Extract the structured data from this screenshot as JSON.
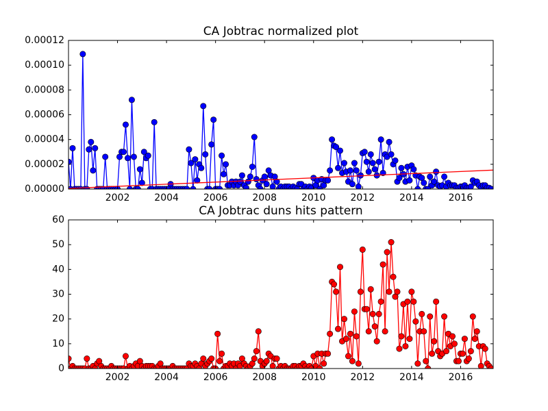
{
  "chart_data": [
    {
      "type": "line",
      "title": "CA Jobtrac normalized plot",
      "x": [
        2000,
        2000.083,
        2000.167,
        2000.25,
        2000.333,
        2000.417,
        2000.5,
        2000.583,
        2000.667,
        2000.75,
        2000.833,
        2000.917,
        2001,
        2001.083,
        2001.167,
        2001.25,
        2001.333,
        2001.417,
        2001.5,
        2001.583,
        2001.667,
        2001.75,
        2001.833,
        2001.917,
        2002,
        2002.083,
        2002.167,
        2002.25,
        2002.333,
        2002.417,
        2002.5,
        2002.583,
        2002.667,
        2002.75,
        2002.833,
        2002.917,
        2003,
        2003.083,
        2003.167,
        2003.25,
        2003.333,
        2003.417,
        2003.5,
        2003.583,
        2003.667,
        2003.75,
        2003.833,
        2003.917,
        2004,
        2004.083,
        2004.167,
        2004.25,
        2004.333,
        2004.417,
        2004.5,
        2004.583,
        2004.667,
        2004.75,
        2004.833,
        2004.917,
        2005,
        2005.083,
        2005.167,
        2005.25,
        2005.333,
        2005.417,
        2005.5,
        2005.583,
        2005.667,
        2005.75,
        2005.833,
        2005.917,
        2006,
        2006.083,
        2006.167,
        2006.25,
        2006.333,
        2006.417,
        2006.5,
        2006.583,
        2006.667,
        2006.75,
        2006.833,
        2006.917,
        2007,
        2007.083,
        2007.167,
        2007.25,
        2007.333,
        2007.417,
        2007.5,
        2007.583,
        2007.667,
        2007.75,
        2007.833,
        2007.917,
        2008,
        2008.083,
        2008.167,
        2008.25,
        2008.333,
        2008.417,
        2008.5,
        2008.583,
        2008.667,
        2008.75,
        2008.833,
        2008.917,
        2009,
        2009.083,
        2009.167,
        2009.25,
        2009.333,
        2009.417,
        2009.5,
        2009.583,
        2009.667,
        2009.75,
        2009.833,
        2009.917,
        2010,
        2010.083,
        2010.167,
        2010.25,
        2010.333,
        2010.417,
        2010.5,
        2010.583,
        2010.667,
        2010.75,
        2010.833,
        2010.917,
        2011,
        2011.083,
        2011.167,
        2011.25,
        2011.333,
        2011.417,
        2011.5,
        2011.583,
        2011.667,
        2011.75,
        2011.833,
        2011.917,
        2012,
        2012.083,
        2012.167,
        2012.25,
        2012.333,
        2012.417,
        2012.5,
        2012.583,
        2012.667,
        2012.75,
        2012.833,
        2012.917,
        2013,
        2013.083,
        2013.167,
        2013.25,
        2013.333,
        2013.417,
        2013.5,
        2013.583,
        2013.667,
        2013.75,
        2013.833,
        2013.917,
        2014,
        2014.083,
        2014.167,
        2014.25,
        2014.333,
        2014.417,
        2014.5,
        2014.583,
        2014.667,
        2014.75,
        2014.833,
        2014.917,
        2015,
        2015.083,
        2015.167,
        2015.25,
        2015.333,
        2015.417,
        2015.5,
        2015.583,
        2015.667,
        2015.75,
        2015.833,
        2015.917,
        2016,
        2016.083,
        2016.167,
        2016.25,
        2016.333,
        2016.417,
        2016.5,
        2016.583,
        2016.667,
        2016.75,
        2016.833,
        2016.917,
        2017,
        2017.083,
        2017.167,
        2017.25
      ],
      "series": [
        {
          "color": "#0000ff",
          "marker": "o",
          "values": [
            2.2e-05,
            0,
            3.3e-05,
            0,
            0,
            0,
            0,
            0.000109,
            0,
            0,
            3.2e-05,
            3.8e-05,
            1.5e-05,
            3.3e-05,
            0,
            0,
            0,
            0,
            2.6e-05,
            0,
            0,
            0,
            0,
            0,
            0,
            2.6e-05,
            3e-05,
            3e-05,
            5.2e-05,
            2.5e-05,
            0,
            7.2e-05,
            2.6e-05,
            0,
            0,
            1.6e-05,
            5e-06,
            3e-05,
            2.5e-05,
            2.7e-05,
            0,
            0,
            5.4e-05,
            0,
            0,
            0,
            0,
            0,
            0,
            0,
            4e-06,
            0,
            0,
            0,
            0,
            0,
            0,
            0,
            0,
            3.2e-05,
            2.1e-05,
            0,
            2.4e-05,
            7e-06,
            2e-05,
            1.7e-05,
            6.7e-05,
            2.8e-05,
            0,
            0,
            3.6e-05,
            5.6e-05,
            0,
            0,
            0,
            2.7e-05,
            1.2e-05,
            2e-05,
            3e-06,
            3e-06,
            6e-06,
            3e-06,
            6e-06,
            3e-06,
            6e-06,
            1.1e-05,
            3e-06,
            1e-06,
            6e-06,
            1e-05,
            1.8e-05,
            4.2e-05,
            8e-06,
            3e-06,
            0,
            7e-06,
            1e-05,
            4e-06,
            1.5e-05,
            1.1e-05,
            2e-06,
            1e-05,
            6e-06,
            0,
            2e-06,
            0,
            2e-06,
            2e-06,
            2e-06,
            0,
            2e-06,
            1e-06,
            0,
            4e-06,
            4e-06,
            0,
            2e-06,
            0,
            2e-06,
            1e-06,
            9e-06,
            3e-06,
            7e-06,
            0,
            8e-06,
            3e-06,
            7e-06,
            7e-06,
            1.5e-05,
            4e-05,
            3.5e-05,
            3.4e-05,
            1.7e-05,
            3.1e-05,
            1.3e-05,
            2.1e-05,
            1.4e-05,
            6e-06,
            1.5e-05,
            4e-06,
            2.1e-05,
            1.5e-05,
            2e-06,
            1.1e-05,
            2.9e-05,
            3e-05,
            2.2e-05,
            1.4e-05,
            2.8e-05,
            2.1e-05,
            1.6e-05,
            1.1e-05,
            2.2e-05,
            4e-05,
            1.3e-05,
            2.8e-05,
            2.6e-05,
            3.8e-05,
            2.8e-05,
            2e-05,
            2.3e-05,
            6e-06,
            9e-06,
            1.7e-05,
            1.2e-05,
            6e-06,
            1.8e-05,
            7e-06,
            1.9e-05,
            1.6e-05,
            1.1e-05,
            0,
            1e-05,
            9e-06,
            5e-06,
            0,
            0,
            1e-05,
            3e-06,
            6e-06,
            1.4e-05,
            3e-06,
            2e-06,
            3e-06,
            1e-05,
            2e-06,
            5e-06,
            3e-06,
            3e-06,
            3e-06,
            1e-06,
            1e-06,
            2e-06,
            2e-06,
            3e-06,
            1e-06,
            1e-06,
            2e-06,
            7e-06,
            5e-06,
            6e-06,
            3e-06,
            1e-06,
            3e-06,
            3e-06,
            1e-06,
            1e-06,
            0
          ]
        },
        {
          "color": "#ff0000",
          "marker": "none",
          "x": [
            2000,
            2017.33
          ],
          "values": [
            5e-07,
            1.53e-05
          ]
        }
      ],
      "xlim": [
        2000,
        2017.33
      ],
      "xticks": [
        2002,
        2004,
        2006,
        2008,
        2010,
        2012,
        2014,
        2016
      ],
      "ylim": [
        0,
        0.00012
      ],
      "yticks": [
        {
          "value": 0,
          "label": "0.00000"
        },
        {
          "value": 2e-05,
          "label": "0.00002"
        },
        {
          "value": 4e-05,
          "label": "0.00004"
        },
        {
          "value": 6e-05,
          "label": "0.00006"
        },
        {
          "value": 8e-05,
          "label": "0.00008"
        },
        {
          "value": 0.0001,
          "label": "0.00010"
        },
        {
          "value": 0.00012,
          "label": "0.00012"
        }
      ]
    },
    {
      "type": "line",
      "title": "CA Jobtrac duns hits pattern",
      "x": [
        2000,
        2000.083,
        2000.167,
        2000.25,
        2000.333,
        2000.417,
        2000.5,
        2000.583,
        2000.667,
        2000.75,
        2000.833,
        2000.917,
        2001,
        2001.083,
        2001.167,
        2001.25,
        2001.333,
        2001.417,
        2001.5,
        2001.583,
        2001.667,
        2001.75,
        2001.833,
        2001.917,
        2002,
        2002.083,
        2002.167,
        2002.25,
        2002.333,
        2002.417,
        2002.5,
        2002.583,
        2002.667,
        2002.75,
        2002.833,
        2002.917,
        2003,
        2003.083,
        2003.167,
        2003.25,
        2003.333,
        2003.417,
        2003.5,
        2003.583,
        2003.667,
        2003.75,
        2003.833,
        2003.917,
        2004,
        2004.083,
        2004.167,
        2004.25,
        2004.333,
        2004.417,
        2004.5,
        2004.583,
        2004.667,
        2004.75,
        2004.833,
        2004.917,
        2005,
        2005.083,
        2005.167,
        2005.25,
        2005.333,
        2005.417,
        2005.5,
        2005.583,
        2005.667,
        2005.75,
        2005.833,
        2005.917,
        2006,
        2006.083,
        2006.167,
        2006.25,
        2006.333,
        2006.417,
        2006.5,
        2006.583,
        2006.667,
        2006.75,
        2006.833,
        2006.917,
        2007,
        2007.083,
        2007.167,
        2007.25,
        2007.333,
        2007.417,
        2007.5,
        2007.583,
        2007.667,
        2007.75,
        2007.833,
        2007.917,
        2008,
        2008.083,
        2008.167,
        2008.25,
        2008.333,
        2008.417,
        2008.5,
        2008.583,
        2008.667,
        2008.75,
        2008.833,
        2008.917,
        2009,
        2009.083,
        2009.167,
        2009.25,
        2009.333,
        2009.417,
        2009.5,
        2009.583,
        2009.667,
        2009.75,
        2009.833,
        2009.917,
        2010,
        2010.083,
        2010.167,
        2010.25,
        2010.333,
        2010.417,
        2010.5,
        2010.583,
        2010.667,
        2010.75,
        2010.833,
        2010.917,
        2011,
        2011.083,
        2011.167,
        2011.25,
        2011.333,
        2011.417,
        2011.5,
        2011.583,
        2011.667,
        2011.75,
        2011.833,
        2011.917,
        2012,
        2012.083,
        2012.167,
        2012.25,
        2012.333,
        2012.417,
        2012.5,
        2012.583,
        2012.667,
        2012.75,
        2012.833,
        2012.917,
        2013,
        2013.083,
        2013.167,
        2013.25,
        2013.333,
        2013.417,
        2013.5,
        2013.583,
        2013.667,
        2013.75,
        2013.833,
        2013.917,
        2014,
        2014.083,
        2014.167,
        2014.25,
        2014.333,
        2014.417,
        2014.5,
        2014.583,
        2014.667,
        2014.75,
        2014.833,
        2014.917,
        2015,
        2015.083,
        2015.167,
        2015.25,
        2015.333,
        2015.417,
        2015.5,
        2015.583,
        2015.667,
        2015.75,
        2015.833,
        2015.917,
        2016,
        2016.083,
        2016.167,
        2016.25,
        2016.333,
        2016.417,
        2016.5,
        2016.583,
        2016.667,
        2016.75,
        2016.833,
        2016.917,
        2017,
        2017.083,
        2017.167,
        2017.25
      ],
      "series": [
        {
          "color": "#ff0000",
          "marker": "o",
          "values": [
            4,
            0,
            1,
            0,
            0,
            0,
            0,
            0,
            0,
            4,
            0,
            0,
            1,
            0,
            2,
            3,
            1,
            0,
            0,
            0,
            0,
            1,
            0,
            0,
            0,
            0,
            0,
            0,
            5,
            0,
            1,
            0,
            1,
            2,
            1,
            3,
            1,
            0,
            1,
            1,
            1,
            1,
            0,
            0,
            1,
            2,
            0,
            0,
            0,
            0,
            0,
            1,
            0,
            0,
            0,
            0,
            0,
            0,
            0,
            2,
            1,
            1,
            2,
            1,
            0,
            2,
            4,
            1,
            2,
            3,
            4,
            0,
            0,
            14,
            3,
            6,
            0,
            1,
            1,
            2,
            1,
            2,
            0,
            2,
            1,
            4,
            2,
            1,
            0,
            1,
            2,
            4,
            7,
            15,
            3,
            1,
            2,
            3,
            6,
            5,
            1,
            4,
            4,
            0,
            1,
            0,
            1,
            0,
            0,
            0,
            1,
            1,
            0,
            1,
            1,
            2,
            1,
            0,
            1,
            0,
            5,
            1,
            6,
            0,
            6,
            2,
            6,
            6,
            14,
            35,
            34,
            31,
            16,
            41,
            11,
            20,
            12,
            5,
            14,
            3,
            23,
            13,
            2,
            31,
            48,
            24,
            24,
            15,
            32,
            22,
            17,
            11,
            22,
            27,
            42,
            15,
            47,
            31,
            51,
            37,
            29,
            31,
            8,
            13,
            26,
            9,
            27,
            12,
            31,
            27,
            19,
            2,
            15,
            22,
            15,
            3,
            0,
            21,
            6,
            11,
            27,
            7,
            5,
            6,
            21,
            7,
            14,
            9,
            13,
            10,
            3,
            3,
            6,
            6,
            12,
            3,
            4,
            7,
            21,
            12,
            15,
            9,
            1,
            9,
            8,
            2,
            1,
            0
          ]
        }
      ],
      "xlim": [
        2000,
        2017.33
      ],
      "xticks": [
        2002,
        2004,
        2006,
        2008,
        2010,
        2012,
        2014,
        2016
      ],
      "ylim": [
        0,
        60
      ],
      "yticks": [
        0,
        10,
        20,
        30,
        40,
        50,
        60
      ]
    }
  ]
}
